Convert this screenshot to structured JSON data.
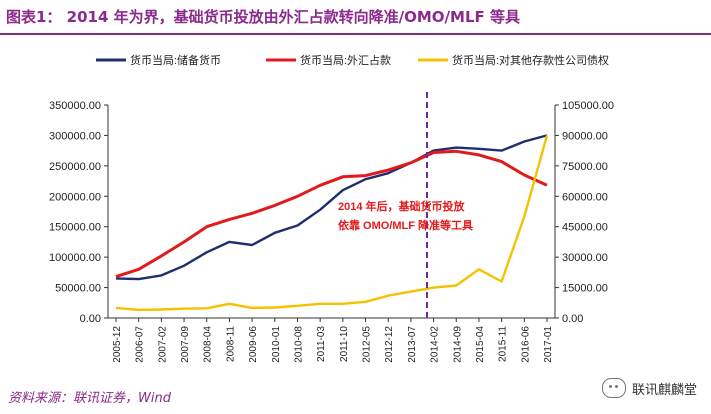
{
  "header": {
    "title": "图表1：   2014 年为界，基础货币投放由外汇占款转向降准/OMO/MLF 等具"
  },
  "chart_data": {
    "type": "line",
    "x": [
      "2005-12",
      "2006-07",
      "2007-02",
      "2007-09",
      "2008-04",
      "2008-11",
      "2009-06",
      "2010-01",
      "2010-08",
      "2011-03",
      "2011-10",
      "2012-05",
      "2012-12",
      "2013-07",
      "2014-02",
      "2014-09",
      "2015-04",
      "2015-11",
      "2016-06",
      "2017-01"
    ],
    "yleft_ticks": [
      "0.00",
      "50000.00",
      "100000.00",
      "150000.00",
      "200000.00",
      "250000.00",
      "300000.00",
      "350000.00"
    ],
    "yright_ticks": [
      "0.00",
      "15000.00",
      "30000.00",
      "45000.00",
      "60000.00",
      "75000.00",
      "90000.00",
      "105000.00"
    ],
    "ylim_left": [
      0,
      350000
    ],
    "ylim_right": [
      0,
      105000
    ],
    "legend_position": "top",
    "series": [
      {
        "name": "货币当局:储备货币",
        "axis": "left",
        "color": "#1f2f6e",
        "values": [
          65000,
          64000,
          70000,
          86000,
          108000,
          125000,
          120000,
          140000,
          152000,
          178000,
          210000,
          228000,
          238000,
          255000,
          275000,
          280000,
          278000,
          275000,
          290000,
          300000
        ]
      },
      {
        "name": "货币当局:外汇占款",
        "axis": "left",
        "color": "#e31a1c",
        "values": [
          68000,
          80000,
          102000,
          125000,
          150000,
          162000,
          172000,
          185000,
          200000,
          218000,
          232000,
          234000,
          243000,
          255000,
          272000,
          274000,
          268000,
          257000,
          235000,
          218000
        ]
      },
      {
        "name": "货币当局:对其他存款性公司债权",
        "axis": "right",
        "color": "#f5c200",
        "values": [
          5000,
          4000,
          4200,
          4600,
          4800,
          7000,
          5000,
          5200,
          6000,
          7000,
          7000,
          8000,
          11000,
          13000,
          15000,
          16000,
          24000,
          18000,
          50000,
          90000
        ]
      }
    ],
    "annotation": {
      "line1": "2014 年后，基础货币投放",
      "line2": "依靠 OMO/MLF 降准等工具",
      "color": "#e31a1c"
    },
    "divider_label": "2014-02"
  },
  "footer": {
    "source": "资料来源：联讯证券，Wind",
    "watermark": "联讯麒麟堂"
  }
}
